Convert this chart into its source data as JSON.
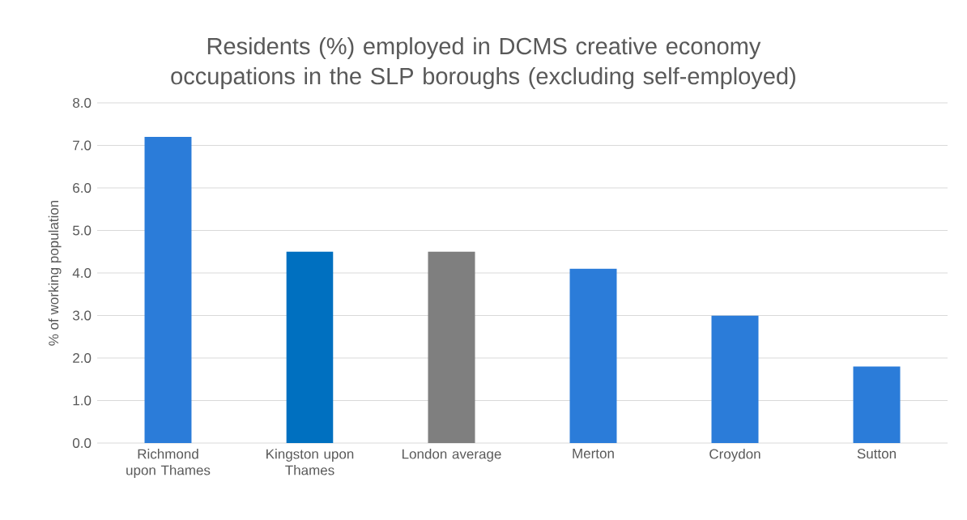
{
  "chart_data": {
    "type": "bar",
    "title": "Residents (%) employed in DCMS creative economy occupations in the SLP boroughs (excluding self-employed)",
    "ylabel": "% of working population",
    "categories": [
      "Richmond upon Thames",
      "Kingston upon Thames",
      "London average",
      "Merton",
      "Croydon",
      "Sutton"
    ],
    "values": [
      7.2,
      4.5,
      4.5,
      4.1,
      3.0,
      1.8
    ],
    "colors": [
      "#2b7cd9",
      "#0070c0",
      "#7f7f7f",
      "#2b7cd9",
      "#2b7cd9",
      "#2b7cd9"
    ],
    "ylim": [
      0,
      8
    ],
    "yticks": [
      {
        "value": 0,
        "label": "0.0"
      },
      {
        "value": 1,
        "label": "1.0"
      },
      {
        "value": 2,
        "label": "2.0"
      },
      {
        "value": 3,
        "label": "3.0"
      },
      {
        "value": 4,
        "label": "4.0"
      },
      {
        "value": 5,
        "label": "5.0"
      },
      {
        "value": 6,
        "label": "6.0"
      },
      {
        "value": 7,
        "label": "7.0"
      },
      {
        "value": 8,
        "label": "8.0"
      }
    ],
    "grid": "y"
  }
}
